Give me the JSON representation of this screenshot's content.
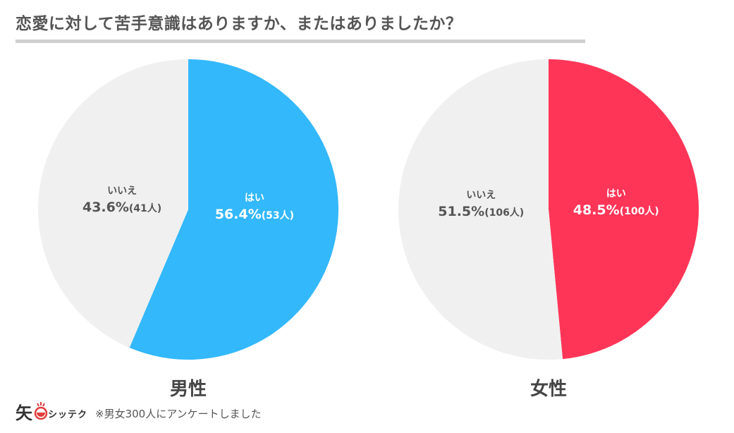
{
  "title": "恋愛に対して苦手意識はありますか、またはありましたか？",
  "footnote": "※男女300人にアンケートしました",
  "brand": "シッテク",
  "logo_glyph": "矢",
  "chart_data": [
    {
      "type": "pie",
      "label": "男性",
      "slices": [
        {
          "name": "はい",
          "percent": 56.4,
          "count_label": "(53人)",
          "pct_label": "56.4%",
          "color": "#33B8FB",
          "text_color": "#ffffff"
        },
        {
          "name": "いいえ",
          "percent": 43.6,
          "count_label": "(41人)",
          "pct_label": "43.6%",
          "color": "#F0F0F0",
          "text_color": "#555555"
        }
      ]
    },
    {
      "type": "pie",
      "label": "女性",
      "slices": [
        {
          "name": "はい",
          "percent": 48.5,
          "count_label": "(100人)",
          "pct_label": "48.5%",
          "color": "#FF3558",
          "text_color": "#ffffff"
        },
        {
          "name": "いいえ",
          "percent": 51.5,
          "count_label": "(106人)",
          "pct_label": "51.5%",
          "color": "#F0F0F0",
          "text_color": "#555555"
        }
      ]
    }
  ]
}
